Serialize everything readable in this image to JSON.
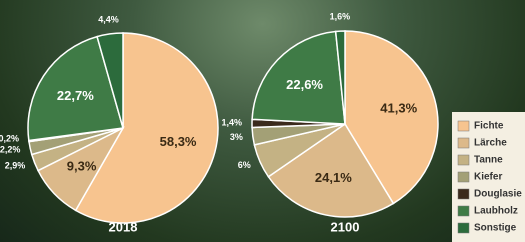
{
  "chart_data": [
    {
      "type": "pie",
      "title": "2018",
      "categories": [
        "Fichte",
        "Lärche",
        "Tanne",
        "Kiefer",
        "Douglasie",
        "Laubholz",
        "Sonstige"
      ],
      "values": [
        58.3,
        9.3,
        2.9,
        2.2,
        0.2,
        22.7,
        4.4
      ],
      "value_labels": [
        "58,3%",
        "9,3%",
        "2,9%",
        "2,2%",
        "0,2%",
        "22,7%",
        "4,4%"
      ],
      "colors": [
        "#f7c48f",
        "#dcb98a",
        "#c4b284",
        "#a3a076",
        "#3b2a1c",
        "#3f7b46",
        "#2c6b3c"
      ]
    },
    {
      "type": "pie",
      "title": "2100",
      "categories": [
        "Fichte",
        "Lärche",
        "Tanne",
        "Kiefer",
        "Douglasie",
        "Laubholz",
        "Sonstige"
      ],
      "values": [
        41.3,
        24.1,
        6,
        3,
        1.4,
        22.6,
        1.6
      ],
      "value_labels": [
        "41,3%",
        "24,1%",
        "6%",
        "3%",
        "1,4%",
        "22,6%",
        "1,6%"
      ],
      "colors": [
        "#f7c48f",
        "#dcb98a",
        "#c4b284",
        "#a3a076",
        "#3b2a1c",
        "#3f7b46",
        "#2c6b3c"
      ]
    }
  ]
}
